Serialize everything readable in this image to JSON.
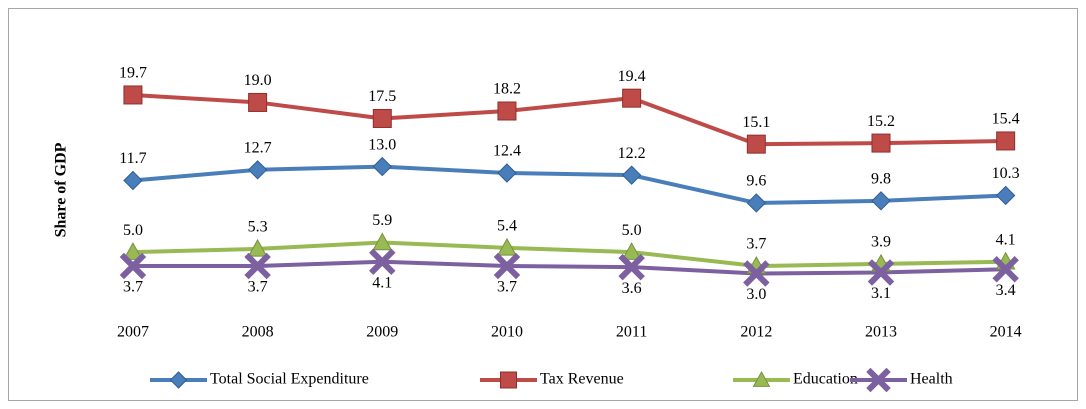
{
  "chart_data": {
    "type": "line",
    "y_label": "Share of GDP",
    "categories": [
      "2007",
      "2008",
      "2009",
      "2010",
      "2011",
      "2012",
      "2013",
      "2014"
    ],
    "ylim": [
      0,
      25
    ],
    "series": [
      {
        "name": "Total Social Expenditure",
        "color": "#4a7ebb",
        "marker": "diamond",
        "label_position": "above",
        "values": [
          11.7,
          12.7,
          13.0,
          12.4,
          12.2,
          9.6,
          9.8,
          10.3
        ],
        "value_labels": [
          "11.7",
          "12.7",
          "13.0",
          "12.4",
          "12.2",
          "9.6",
          "9.8",
          "10.3"
        ]
      },
      {
        "name": "Tax Revenue",
        "color": "#be4b48",
        "marker": "square",
        "label_position": "above",
        "values": [
          19.7,
          19.0,
          17.5,
          18.2,
          19.4,
          15.1,
          15.2,
          15.4
        ],
        "value_labels": [
          "19.7",
          "19.0",
          "17.5",
          "18.2",
          "19.4",
          "15.1",
          "15.2",
          "15.4"
        ]
      },
      {
        "name": "Education",
        "color": "#98b954",
        "marker": "triangle",
        "label_position": "above",
        "values": [
          5.0,
          5.3,
          5.9,
          5.4,
          5.0,
          3.7,
          3.9,
          4.1
        ],
        "value_labels": [
          "5.0",
          "5.3",
          "5.9",
          "5.4",
          "5.0",
          "3.7",
          "3.9",
          "4.1"
        ]
      },
      {
        "name": "Health",
        "color": "#7d60a0",
        "marker": "x",
        "label_position": "below",
        "values": [
          3.7,
          3.7,
          4.1,
          3.7,
          3.6,
          3.0,
          3.1,
          3.4
        ],
        "value_labels": [
          "3.7",
          "3.7",
          "4.1",
          "3.7",
          "3.6",
          "3.0",
          "3.1",
          "3.4"
        ]
      }
    ]
  }
}
